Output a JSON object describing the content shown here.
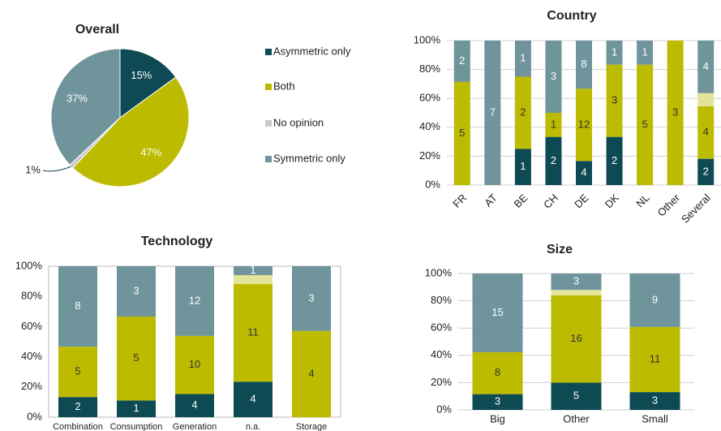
{
  "chart_data": [
    {
      "type": "pie",
      "title": "Overall",
      "categories": [
        "Asymmetric only",
        "Both",
        "No opinion",
        "Symmetric only"
      ],
      "values": [
        15,
        47,
        1,
        37
      ],
      "value_labels": [
        "15%",
        "47%",
        "1%",
        "37%"
      ],
      "colors": [
        "#0e4a53",
        "#bcbb00",
        "#c9c9c9",
        "#6f949b"
      ],
      "legend": "right"
    },
    {
      "type": "bar",
      "stacked": "percent",
      "title": "Country",
      "categories": [
        "FR",
        "AT",
        "BE",
        "CH",
        "DE",
        "DK",
        "NL",
        "Other",
        "Several"
      ],
      "series": [
        {
          "color": "#0e4a53",
          "label_color": "#ffffff",
          "values": [
            0,
            0,
            1,
            2,
            4,
            2,
            0,
            0,
            2
          ]
        },
        {
          "color": "#bcbb00",
          "label_color": "#333333",
          "values": [
            5,
            0,
            2,
            1,
            12,
            3,
            5,
            3,
            4
          ]
        },
        {
          "color": "#e3e39a",
          "label_color": "#333333",
          "show_labels": false,
          "values": [
            0,
            0,
            0,
            0,
            0,
            0,
            0,
            0,
            1
          ]
        },
        {
          "color": "#6f949b",
          "label_color": "#ffffff",
          "values": [
            2,
            7,
            1,
            3,
            8,
            1,
            1,
            0,
            4
          ]
        }
      ],
      "ylim": [
        0,
        100
      ],
      "yticks": [
        {
          "value": 0,
          "label": "0%"
        },
        {
          "value": 20,
          "label": "20%"
        },
        {
          "value": 40,
          "label": "40%"
        },
        {
          "value": 60,
          "label": "60%"
        },
        {
          "value": 80,
          "label": "80%"
        },
        {
          "value": 100,
          "label": "100%"
        }
      ],
      "grid": true,
      "rotate_labels": true
    },
    {
      "type": "bar",
      "stacked": "percent",
      "title": "Technology",
      "categories": [
        "Combination",
        "Consumption",
        "Generation",
        "n.a.",
        "Storage"
      ],
      "series": [
        {
          "color": "#0e4a53",
          "label_color": "#ffffff",
          "values": [
            2,
            1,
            4,
            4,
            0
          ]
        },
        {
          "color": "#bcbb00",
          "label_color": "#333333",
          "values": [
            5,
            5,
            10,
            11,
            4
          ]
        },
        {
          "color": "#e3e39a",
          "label_color": "#333333",
          "show_labels": false,
          "values": [
            0,
            0,
            0,
            1,
            0
          ]
        },
        {
          "color": "#6f949b",
          "label_color": "#ffffff",
          "values": [
            8,
            3,
            12,
            1,
            3
          ]
        }
      ],
      "ylim": [
        0,
        100
      ],
      "yticks": [
        {
          "value": 0,
          "label": "0%"
        },
        {
          "value": 20,
          "label": "20%"
        },
        {
          "value": 40,
          "label": "40%"
        },
        {
          "value": 60,
          "label": "60%"
        },
        {
          "value": 80,
          "label": "80%"
        },
        {
          "value": 100,
          "label": "100%"
        }
      ],
      "grid": false,
      "frame": true
    },
    {
      "type": "bar",
      "stacked": "percent",
      "title": "Size",
      "categories": [
        "Big",
        "Other",
        "Small"
      ],
      "series": [
        {
          "color": "#0e4a53",
          "label_color": "#ffffff",
          "values": [
            3,
            5,
            3
          ]
        },
        {
          "color": "#bcbb00",
          "label_color": "#333333",
          "values": [
            8,
            16,
            11
          ]
        },
        {
          "color": "#e3e39a",
          "label_color": "#333333",
          "show_labels": false,
          "values": [
            0,
            1,
            0
          ]
        },
        {
          "color": "#6f949b",
          "label_color": "#ffffff",
          "values": [
            15,
            3,
            9
          ]
        }
      ],
      "ylim": [
        0,
        100
      ],
      "yticks": [
        {
          "value": 0,
          "label": "0%"
        },
        {
          "value": 20,
          "label": "20%"
        },
        {
          "value": 40,
          "label": "40%"
        },
        {
          "value": 60,
          "label": "60%"
        },
        {
          "value": 80,
          "label": "80%"
        },
        {
          "value": 100,
          "label": "100%"
        }
      ],
      "grid": true
    }
  ]
}
